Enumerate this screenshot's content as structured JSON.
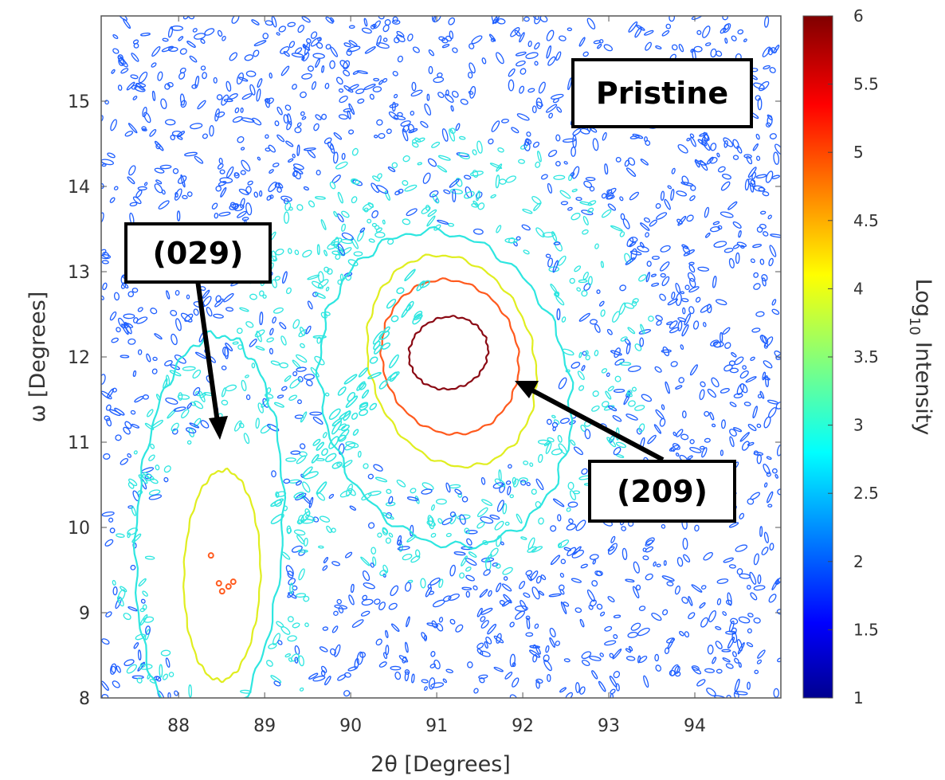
{
  "chart_data": {
    "type": "contour",
    "xlabel": "2θ [Degrees]",
    "ylabel": "ω [Degrees]",
    "xlim": [
      87.1,
      95.0
    ],
    "ylim": [
      8.0,
      16.0
    ],
    "xticks": [
      "88",
      "89",
      "90",
      "91",
      "92",
      "93",
      "94"
    ],
    "yticks": [
      "8",
      "9",
      "10",
      "11",
      "12",
      "13",
      "14",
      "15"
    ],
    "colorbar": {
      "label_base": "Log",
      "label_sub": "10",
      "label_rest": "Intensity",
      "range": [
        1,
        6
      ],
      "ticks": [
        "1",
        "1.5",
        "2",
        "2.5",
        "3",
        "3.5",
        "4",
        "4.5",
        "5",
        "5.5",
        "6"
      ],
      "colormap": "jet"
    },
    "contour_levels": [
      {
        "level": 2,
        "color": "#1f5fff"
      },
      {
        "level": 3,
        "color": "#2ee6e0"
      },
      {
        "level": 4,
        "color": "#e0ee20"
      },
      {
        "level": 5,
        "color": "#ff5a1e"
      },
      {
        "level": 6,
        "color": "#8b0a14"
      }
    ],
    "peaks": [
      {
        "label": "(209)",
        "x": 91.1,
        "y": 12.0,
        "peak_log_intensity": 6
      },
      {
        "label": "(029)",
        "x": 88.45,
        "y": 9.55,
        "peak_log_intensity": 5
      }
    ],
    "annotations": [
      {
        "text": "Pristine"
      },
      {
        "text": "(029)"
      },
      {
        "text": "(209)"
      }
    ],
    "grid": false
  }
}
